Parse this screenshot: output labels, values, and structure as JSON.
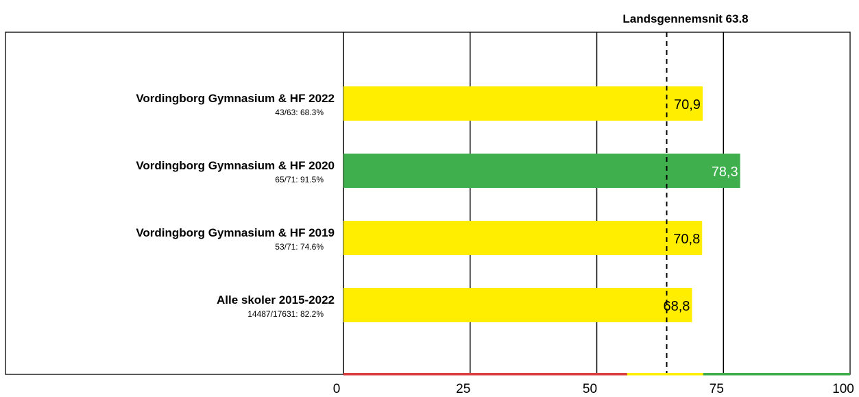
{
  "chart_data": {
    "type": "bar",
    "orientation": "horizontal",
    "reference_line": {
      "label": "Landsgennemsnit 63.8",
      "value": 63.8,
      "style": "dashed"
    },
    "categories": [
      {
        "name": "Vordingborg Gymnasium & HF 2022",
        "detail": "43/63: 68.3%"
      },
      {
        "name": "Vordingborg Gymnasium & HF 2020",
        "detail": "65/71: 91.5%"
      },
      {
        "name": "Vordingborg Gymnasium & HF 2019",
        "detail": "53/71: 74.6%"
      },
      {
        "name": "Alle skoler 2015-2022",
        "detail": "14487/17631: 82.2%"
      }
    ],
    "values": [
      70.9,
      78.3,
      70.8,
      68.8
    ],
    "value_labels": [
      "70,9",
      "78,3",
      "70,8",
      "68,8"
    ],
    "bar_colors": [
      "#ffee00",
      "#3faf4d",
      "#ffee00",
      "#ffee00"
    ],
    "value_label_colors": [
      "#000000",
      "#ffffff",
      "#000000",
      "#000000"
    ],
    "xlim": [
      0,
      100
    ],
    "xticks": [
      0,
      25,
      50,
      75,
      100
    ],
    "xtick_labels": [
      "0",
      "25",
      "50",
      "75",
      "100"
    ],
    "grid": true,
    "axis_bands": [
      {
        "from": 0,
        "to": 56,
        "color": "#d94040"
      },
      {
        "from": 56,
        "to": 71,
        "color": "#ffee00"
      },
      {
        "from": 71,
        "to": 100,
        "color": "#3faf4d"
      }
    ]
  }
}
